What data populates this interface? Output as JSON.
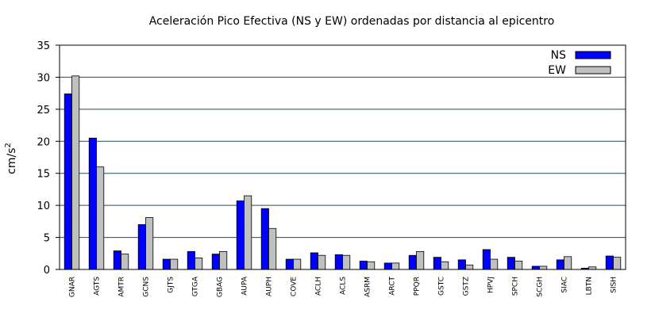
{
  "chart_data": {
    "type": "bar",
    "title": "Aceleración Pico Efectiva (NS y EW) ordenadas por distancia al epicentro",
    "ylabel": "cm/s",
    "ylabel_sup": "2",
    "xlabel": "",
    "ylim": [
      0,
      35
    ],
    "yticks": [
      0,
      5,
      10,
      15,
      20,
      25,
      30,
      35
    ],
    "grid": true,
    "legend_position": "top-right",
    "categories": [
      "GNAR",
      "AGTS",
      "AMTR",
      "GCNS",
      "GJTS",
      "GTGA",
      "GBAG",
      "AUPA",
      "AUPH",
      "COVE",
      "ACLH",
      "ACLS",
      "ASRM",
      "ARCT",
      "PPQR",
      "GSTC",
      "GSTZ",
      "HPVJ",
      "SPCH",
      "SCGH",
      "SIAC",
      "LBTN",
      "SISH"
    ],
    "series": [
      {
        "name": "NS",
        "color": "#0000ff",
        "values": [
          27.4,
          20.5,
          2.9,
          7.0,
          1.6,
          2.8,
          2.4,
          10.7,
          9.5,
          1.6,
          2.6,
          2.3,
          1.3,
          1.0,
          2.2,
          1.9,
          1.5,
          3.1,
          1.9,
          0.5,
          1.5,
          0.2,
          2.1
        ]
      },
      {
        "name": "EW",
        "color": "#c0c0c0",
        "values": [
          30.2,
          16.0,
          2.4,
          8.1,
          1.6,
          1.8,
          2.8,
          11.5,
          6.4,
          1.6,
          2.2,
          2.2,
          1.2,
          1.0,
          2.8,
          1.2,
          0.7,
          1.6,
          1.3,
          0.5,
          2.0,
          0.4,
          1.9
        ]
      }
    ]
  }
}
